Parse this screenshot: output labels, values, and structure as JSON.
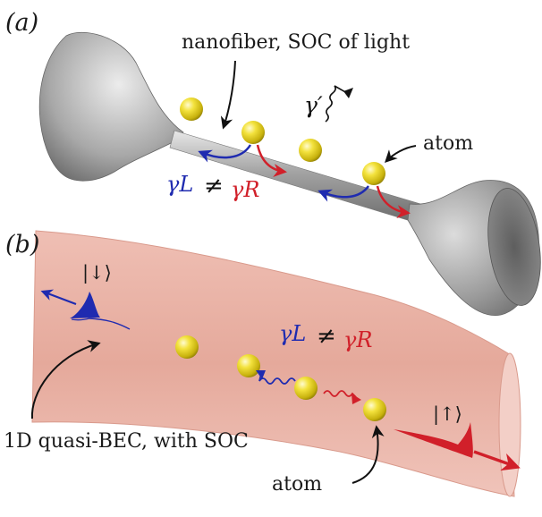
{
  "panel_a": {
    "tag": "(a)",
    "fiber_label": "nanofiber, SOC of light",
    "gamma_prime": "γ′",
    "atom_label": "atom",
    "gamma_L": "γL",
    "neq": "≠",
    "gamma_R": "γR"
  },
  "panel_b": {
    "tag": "(b)",
    "spin_down": "|↓⟩",
    "spin_up": "|↑⟩",
    "gamma_L": "γL",
    "neq": "≠",
    "gamma_R": "γR",
    "bec_label": "1D quasi-BEC, with SOC",
    "atom_label": "atom"
  },
  "colors": {
    "fiber": "#a9a9a9",
    "bec_cloud": "#eab2a6",
    "atom": "#e6d21e",
    "left_emission": "#1f2bb0",
    "right_emission": "#d1202a"
  }
}
